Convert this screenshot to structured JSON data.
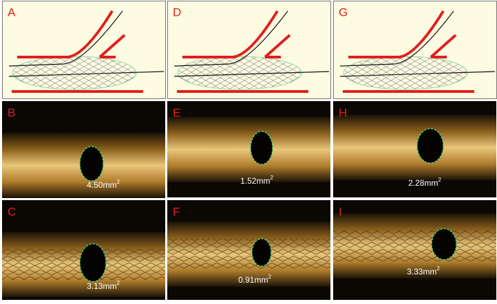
{
  "panels": [
    {
      "label": "A"
    },
    {
      "label": "D"
    },
    {
      "label": "G"
    },
    {
      "label": "B",
      "area": "4.50mm",
      "power": "2"
    },
    {
      "label": "E",
      "area": "1.52mm",
      "power": "2"
    },
    {
      "label": "H",
      "area": "2.28mm",
      "power": "2"
    },
    {
      "label": "C",
      "area": "3.13mm",
      "power": "2"
    },
    {
      "label": "F",
      "area": "0.91mm",
      "power": "2"
    },
    {
      "label": "I",
      "area": "3.33mm",
      "power": "2"
    }
  ]
}
